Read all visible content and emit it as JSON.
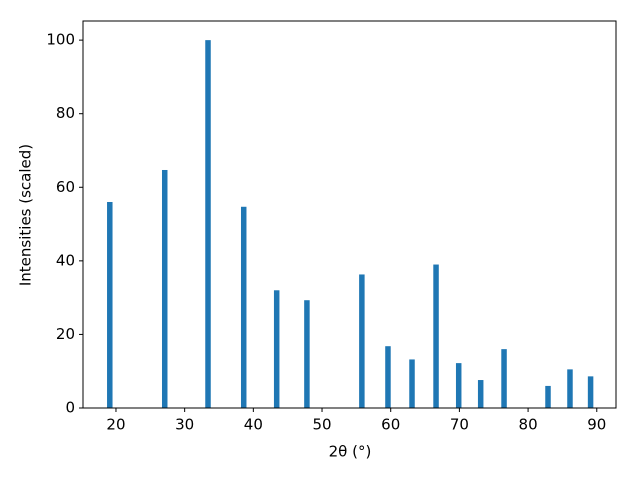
{
  "chart_data": {
    "type": "bar",
    "x_label": "2θ (°)",
    "y_label": "Intensities (scaled)",
    "x": [
      19.1,
      27.1,
      33.4,
      38.6,
      43.4,
      47.8,
      55.8,
      59.6,
      63.1,
      66.6,
      69.9,
      73.1,
      76.5,
      82.9,
      86.1,
      89.1
    ],
    "values": [
      56,
      64.7,
      100,
      54.7,
      32,
      29.3,
      36.3,
      16.8,
      13.2,
      39,
      12.2,
      7.6,
      16,
      6,
      10.5,
      8.6
    ],
    "bar_width": 0.8,
    "color": "#1f77b4",
    "xlim": [
      15.2,
      92.8
    ],
    "xticks": [
      20,
      30,
      40,
      50,
      60,
      70,
      80,
      90
    ],
    "ylim": [
      0,
      105.2
    ],
    "yticks": [
      0,
      20,
      40,
      60,
      80,
      100
    ],
    "grid": false
  }
}
